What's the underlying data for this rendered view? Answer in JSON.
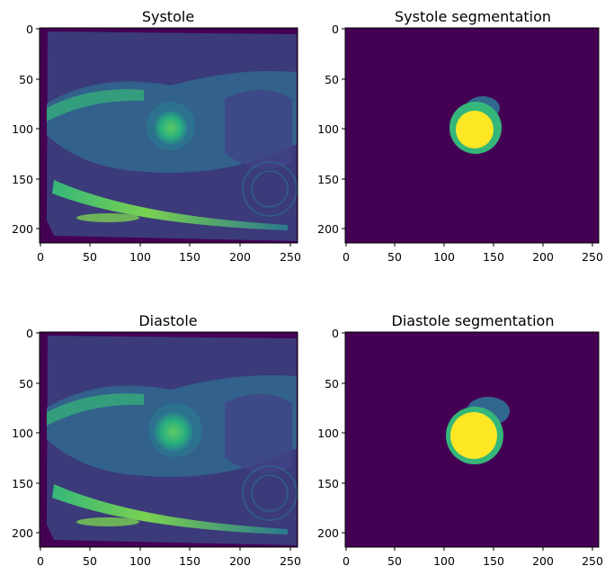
{
  "panels": [
    {
      "title": "Systole",
      "kind": "mri",
      "xticks": [
        "0",
        "50",
        "100",
        "150",
        "200",
        "250"
      ],
      "yticks": [
        "0",
        "50",
        "100",
        "150",
        "200"
      ]
    },
    {
      "title": "Systole segmentation",
      "kind": "segmentation",
      "xticks": [
        "0",
        "50",
        "100",
        "150",
        "200",
        "250"
      ],
      "yticks": [
        "0",
        "50",
        "100",
        "150",
        "200"
      ]
    },
    {
      "title": "Diastole",
      "kind": "mri",
      "xticks": [
        "0",
        "50",
        "100",
        "150",
        "200",
        "250"
      ],
      "yticks": [
        "0",
        "50",
        "100",
        "150",
        "200"
      ]
    },
    {
      "title": "Diastole segmentation",
      "kind": "segmentation",
      "xticks": [
        "0",
        "50",
        "100",
        "150",
        "200",
        "250"
      ],
      "yticks": [
        "0",
        "50",
        "100",
        "150",
        "200"
      ]
    }
  ],
  "colors": {
    "background": "#440154",
    "blood_pool": "#fde725",
    "myocardium": "#35b779",
    "right_ventricle": "#31688e",
    "mri_mid": "#3b528b",
    "mri_bright": "#5ec962"
  }
}
